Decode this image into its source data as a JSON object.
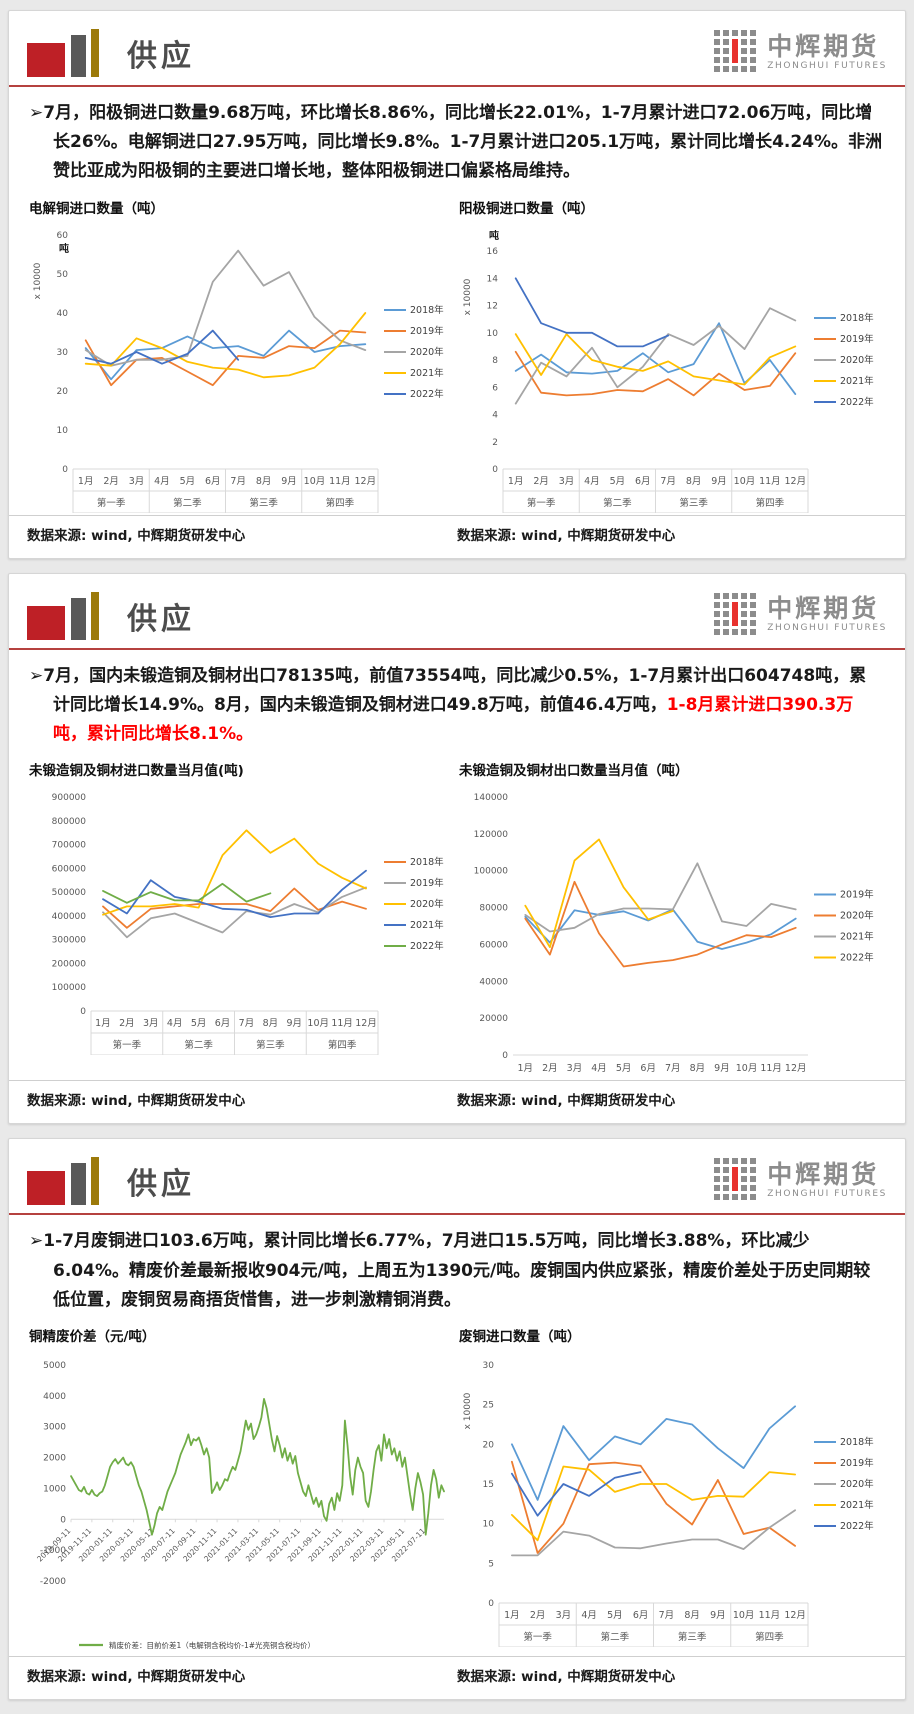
{
  "brand": {
    "name": "中辉期货",
    "sub": "ZHONGHUI FUTURES"
  },
  "bullet_marker": "➢",
  "panels": [
    {
      "title": "供应",
      "bullet": "7月，阳极铜进口数量9.68万吨，环比增长8.86%，同比增长22.01%，1-7月累计进口72.06万吨，同比增长26%。电解铜进口27.95万吨，同比增长9.8%。1-7月累计进口205.1万吨，累计同比增长4.24%。非洲赞比亚成为阳极铜的主要进口增长地，整体阳极铜进口偏紧格局维持。",
      "source": "数据来源: wind, 中辉期货研发中心"
    },
    {
      "title": "供应",
      "bullet": "7月，国内未锻造铜及铜材出口78135吨，前值73554吨，同比减少0.5%，1-7月累计出口604748吨，累计同比增长14.9%。8月，国内未锻造铜及铜材进口49.8万吨，前值46.4万吨，",
      "bullet_red": "1-8月累计进口390.3万吨，累计同比增长8.1%。",
      "source": "数据来源: wind, 中辉期货研发中心"
    },
    {
      "title": "供应",
      "bullet": "1-7月废铜进口103.6万吨，累计同比增长6.77%，7月进口15.5万吨，同比增长3.88%，环比减少6.04%。精废价差最新报收904元/吨，上周五为1390元/吨。废铜国内供应紧张，精废价差处于历史同期较低位置，废铜贸易商捂货惜售，进一步刺激精铜消费。",
      "source": "数据来源: wind, 中辉期货研发中心"
    }
  ],
  "chart_data": [
    {
      "type": "line",
      "title": "电解铜进口数量（吨）",
      "unit": "吨",
      "scale_label": "x 10000",
      "ylim": [
        0,
        60
      ],
      "ytick_step": 10,
      "legend_position": "right",
      "grid": false,
      "categories": [
        "1月",
        "2月",
        "3月",
        "4月",
        "5月",
        "6月",
        "7月",
        "8月",
        "9月",
        "10月",
        "11月",
        "12月"
      ],
      "quarters": [
        "第一季",
        "第二季",
        "第三季",
        "第四季"
      ],
      "series": [
        {
          "name": "2018年",
          "color": "#5B9BD5",
          "values": [
            31,
            23,
            30.5,
            31,
            34,
            31,
            31.5,
            29,
            35.5,
            30,
            31.5,
            32
          ]
        },
        {
          "name": "2019年",
          "color": "#ED7D31",
          "values": [
            33,
            21.5,
            28,
            28.5,
            25,
            21.5,
            29,
            28.5,
            31.5,
            31,
            35.5,
            35
          ]
        },
        {
          "name": "2020年",
          "color": "#A5A5A5",
          "values": [
            30.5,
            26.5,
            28,
            28,
            29,
            48,
            56,
            47,
            50.5,
            39,
            33,
            30.5
          ]
        },
        {
          "name": "2021年",
          "color": "#FFC000",
          "values": [
            27,
            26.5,
            33.5,
            31,
            27.5,
            26,
            25.5,
            23.5,
            24,
            26,
            32,
            40
          ]
        },
        {
          "name": "2022年",
          "color": "#4472C4",
          "values": [
            28.5,
            27,
            30,
            27,
            29.5,
            35.5,
            28
          ]
        }
      ]
    },
    {
      "type": "line",
      "title": "阳极铜进口数量（吨）",
      "unit": "吨",
      "scale_label": "x 10000",
      "ylim": [
        0,
        16
      ],
      "ytick_step": 2,
      "legend_position": "right",
      "grid": false,
      "categories": [
        "1月",
        "2月",
        "3月",
        "4月",
        "5月",
        "6月",
        "7月",
        "8月",
        "9月",
        "10月",
        "11月",
        "12月"
      ],
      "quarters": [
        "第一季",
        "第二季",
        "第三季",
        "第四季"
      ],
      "series": [
        {
          "name": "2018年",
          "color": "#5B9BD5",
          "values": [
            7.2,
            8.4,
            7.1,
            7,
            7.2,
            8.5,
            7.1,
            7.7,
            10.7,
            6.3,
            8,
            5.5
          ]
        },
        {
          "name": "2019年",
          "color": "#ED7D31",
          "values": [
            8.6,
            5.6,
            5.4,
            5.5,
            5.8,
            5.7,
            6.6,
            5.4,
            7,
            5.8,
            6.1,
            8.5
          ]
        },
        {
          "name": "2020年",
          "color": "#A5A5A5",
          "values": [
            4.8,
            7.8,
            6.8,
            8.9,
            6,
            7.5,
            9.9,
            9.1,
            10.5,
            8.8,
            11.8,
            10.9
          ]
        },
        {
          "name": "2021年",
          "color": "#FFC000",
          "values": [
            9.9,
            6.9,
            9.9,
            8,
            7.5,
            7.2,
            7.9,
            6.8,
            6.5,
            6.2,
            8.2,
            9
          ]
        },
        {
          "name": "2022年",
          "color": "#4472C4",
          "values": [
            14,
            10.7,
            10,
            10,
            9,
            9,
            9.8
          ]
        }
      ]
    },
    {
      "type": "line",
      "title": "未锻造铜及铜材进口数量当月值(吨)",
      "ylim": [
        0,
        900000
      ],
      "ytick_step": 100000,
      "legend_position": "right",
      "grid": false,
      "categories": [
        "1月",
        "2月",
        "3月",
        "4月",
        "5月",
        "6月",
        "7月",
        "8月",
        "9月",
        "10月",
        "11月",
        "12月"
      ],
      "quarters": [
        "第一季",
        "第二季",
        "第三季",
        "第四季"
      ],
      "series": [
        {
          "name": "2018年",
          "color": "#ED7D31",
          "values": [
            440000,
            350000,
            430000,
            440000,
            450000,
            450000,
            450000,
            420000,
            515000,
            425000,
            460000,
            430000
          ]
        },
        {
          "name": "2019年",
          "color": "#A5A5A5",
          "values": [
            415000,
            310000,
            390000,
            410000,
            370000,
            330000,
            420000,
            405000,
            450000,
            415000,
            480000,
            520000
          ]
        },
        {
          "name": "2020年",
          "color": "#FFC000",
          "values": [
            405000,
            440000,
            440000,
            450000,
            435000,
            655000,
            760000,
            665000,
            725000,
            620000,
            560000,
            515000
          ]
        },
        {
          "name": "2021年",
          "color": "#4472C4",
          "values": [
            470000,
            410000,
            550000,
            480000,
            460000,
            430000,
            425000,
            395000,
            410000,
            410000,
            510000,
            590000
          ]
        },
        {
          "name": "2022年",
          "color": "#70AD47",
          "values": [
            505000,
            455000,
            500000,
            465000,
            465000,
            535000,
            460000,
            495000
          ]
        }
      ]
    },
    {
      "type": "line",
      "title": "未锻造铜及铜材出口数量当月值（吨）",
      "ylim": [
        0,
        140000
      ],
      "ytick_step": 20000,
      "legend_position": "right",
      "grid": false,
      "categories": [
        "1月",
        "2月",
        "3月",
        "4月",
        "5月",
        "6月",
        "7月",
        "8月",
        "9月",
        "10月",
        "11月",
        "12月"
      ],
      "series": [
        {
          "name": "2019年",
          "color": "#5B9BD5",
          "values": [
            75000,
            61000,
            78500,
            76000,
            78000,
            73000,
            79000,
            61500,
            57500,
            61000,
            65500,
            74000
          ]
        },
        {
          "name": "2020年",
          "color": "#ED7D31",
          "values": [
            74000,
            54500,
            94000,
            66000,
            48000,
            50000,
            51500,
            54500,
            60000,
            65000,
            64000,
            69000
          ]
        },
        {
          "name": "2021年",
          "color": "#A5A5A5",
          "values": [
            76000,
            67000,
            69000,
            76500,
            79500,
            79500,
            79000,
            104000,
            72500,
            70000,
            82000,
            79000
          ]
        },
        {
          "name": "2022年",
          "color": "#FFC000",
          "values": [
            81000,
            58500,
            105500,
            117000,
            91000,
            73500,
            78135
          ]
        }
      ]
    },
    {
      "type": "line",
      "title": "铜精废价差（元/吨）",
      "ylim": [
        -2000,
        5000
      ],
      "ytick_step": 1000,
      "legend_position": "bottom",
      "grid": false,
      "legend_label": "精废价差：目前价差1（电解铜含税均价-1#光亮铜含税均价）",
      "x_tick_labels": [
        "2019-09-11",
        "2019-11-11",
        "2020-01-11",
        "2020-03-11",
        "2020-05-11",
        "2020-07-11",
        "2020-09-11",
        "2020-11-11",
        "2021-01-11",
        "2021-03-11",
        "2021-05-11",
        "2021-07-11",
        "2021-09-11",
        "2021-11-11",
        "2022-01-11",
        "2022-03-11",
        "2022-05-11",
        "2022-07-11"
      ],
      "series": [
        {
          "name": "精废价差",
          "color": "#70AD47",
          "values": [
            1400,
            1250,
            1100,
            950,
            900,
            1050,
            850,
            800,
            950,
            800,
            750,
            850,
            900,
            1100,
            1400,
            1700,
            1850,
            1950,
            1800,
            1900,
            2000,
            1800,
            1750,
            1850,
            1700,
            1400,
            1100,
            900,
            600,
            300,
            -100,
            -500,
            -200,
            200,
            400,
            300,
            600,
            900,
            1100,
            1300,
            1500,
            1800,
            2100,
            2300,
            2500,
            2750,
            2400,
            2600,
            2550,
            2650,
            2400,
            2100,
            2300,
            2000,
            850,
            1000,
            1200,
            950,
            1100,
            1300,
            1250,
            1500,
            1700,
            1600,
            1900,
            2200,
            2700,
            3200,
            2900,
            3100,
            2600,
            2750,
            3000,
            3300,
            3900,
            3600,
            3100,
            2600,
            2200,
            2700,
            2400,
            2000,
            2300,
            1900,
            2150,
            1800,
            2050,
            1500,
            1200,
            900,
            750,
            1100,
            800,
            500,
            700,
            400,
            600,
            100,
            -50,
            500,
            700,
            300,
            850,
            600,
            1100,
            3200,
            2400,
            1400,
            800,
            1600,
            2000,
            1700,
            1500,
            600,
            400,
            900,
            1600,
            2200,
            2400,
            1900,
            2750,
            2300,
            2600,
            2100,
            2300,
            1900,
            2200,
            1700,
            2000,
            1400,
            800,
            300,
            1000,
            1500,
            1200,
            800,
            -500,
            200,
            1100,
            1600,
            1300,
            700,
            1100,
            904
          ]
        }
      ]
    },
    {
      "type": "line",
      "title": "废铜进口数量（吨）",
      "scale_label": "x 10000",
      "ylim": [
        0,
        30
      ],
      "ytick_step": 5,
      "legend_position": "right",
      "grid": false,
      "categories": [
        "1月",
        "2月",
        "3月",
        "4月",
        "5月",
        "6月",
        "7月",
        "8月",
        "9月",
        "10月",
        "11月",
        "12月"
      ],
      "quarters": [
        "第一季",
        "第二季",
        "第三季",
        "第四季"
      ],
      "series": [
        {
          "name": "2018年",
          "color": "#5B9BD5",
          "values": [
            20,
            13,
            22.3,
            18,
            21,
            20,
            23.2,
            22.5,
            19.5,
            17,
            22,
            24.8
          ]
        },
        {
          "name": "2019年",
          "color": "#ED7D31",
          "values": [
            17.8,
            6.3,
            10,
            17.5,
            17.7,
            17.3,
            12.5,
            9.9,
            15.5,
            8.7,
            9.5,
            7.2
          ]
        },
        {
          "name": "2020年",
          "color": "#A5A5A5",
          "values": [
            6,
            6,
            9,
            8.5,
            7,
            6.9,
            7.5,
            8,
            8,
            6.8,
            9.5,
            11.7
          ]
        },
        {
          "name": "2021年",
          "color": "#FFC000",
          "values": [
            11.1,
            7.9,
            17.2,
            16.8,
            14,
            15,
            15,
            13,
            13.5,
            13.4,
            16.5,
            16.2
          ]
        },
        {
          "name": "2022年",
          "color": "#4472C4",
          "values": [
            16.3,
            11,
            15,
            13.5,
            15.8,
            16.5
          ]
        }
      ]
    }
  ]
}
